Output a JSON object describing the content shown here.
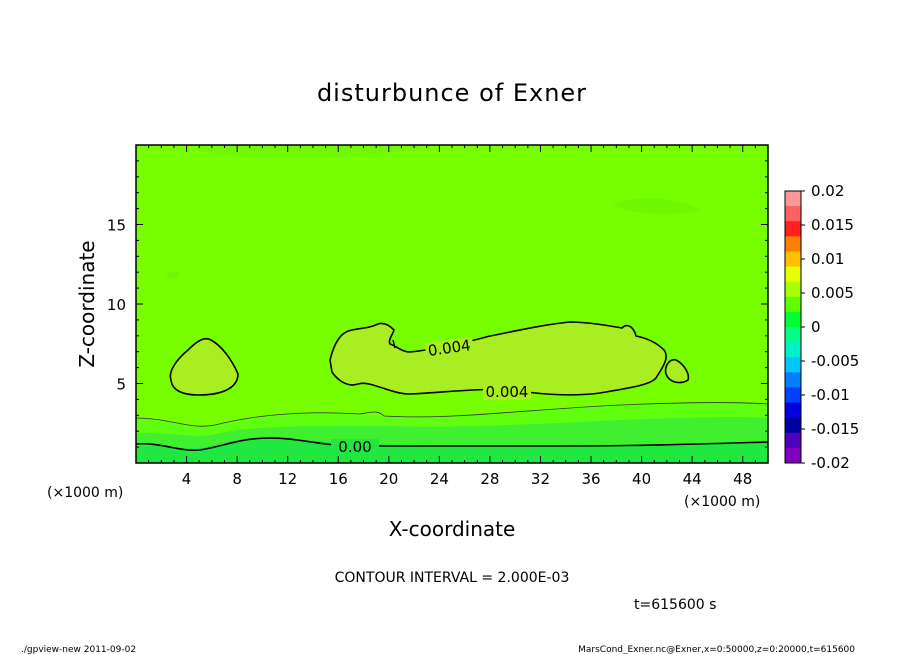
{
  "chart_data": {
    "type": "heatmap",
    "title": "disturbunce of Exner",
    "xlabel": "X-coordinate",
    "ylabel": "Z-coordinate",
    "x_unit": "(×1000 m)",
    "y_unit": "(×1000 m)",
    "xlim": [
      0,
      50
    ],
    "ylim": [
      0,
      20
    ],
    "x_ticks": [
      4,
      8,
      12,
      16,
      20,
      24,
      28,
      32,
      36,
      40,
      44,
      48
    ],
    "y_ticks": [
      5,
      10,
      15
    ],
    "contour_interval_text": "CONTOUR INTERVAL = 2.000E-03",
    "time_text": "t=615600 s",
    "contour_labels": [
      "0.004",
      "0.004",
      "0.00"
    ],
    "colorbar": {
      "ticks": [
        "0.02",
        "0.015",
        "0.01",
        "0.005",
        "0",
        "-0.005",
        "-0.01",
        "-0.015",
        "-0.02"
      ],
      "colors": [
        "#ff9999",
        "#ff6060",
        "#ff2020",
        "#ff8000",
        "#ffc000",
        "#e8ff00",
        "#a8ff00",
        "#60ff00",
        "#00ff30",
        "#00ff88",
        "#00f0c8",
        "#00c8ff",
        "#0080ff",
        "#0040ff",
        "#0000e0",
        "#0000a0",
        "#5000c0",
        "#8000c0"
      ]
    },
    "field": {
      "background_level": "0.002 to 0.004",
      "regions_above_0.004": [
        {
          "x_range": [
            3,
            8
          ],
          "z_range": [
            4.3,
            7.8
          ]
        },
        {
          "x_range": [
            16,
            42
          ],
          "z_range": [
            4.3,
            8.7
          ]
        },
        {
          "x_range": [
            42,
            44
          ],
          "z_range": [
            5.0,
            6.3
          ]
        }
      ],
      "zero_contour_z_approx": 1.2
    }
  },
  "footer": {
    "left": "./gpview-new   2011-09-02",
    "right": "MarsCond_Exner.nc@Exner,x=0:50000,z=0:20000,t=615600"
  },
  "colors": {
    "background_field": "#77ff00",
    "high_region": "#a8ee22",
    "low_band_1": "#60ff10",
    "low_band_2": "#40f030",
    "low_band_3": "#20e840"
  }
}
